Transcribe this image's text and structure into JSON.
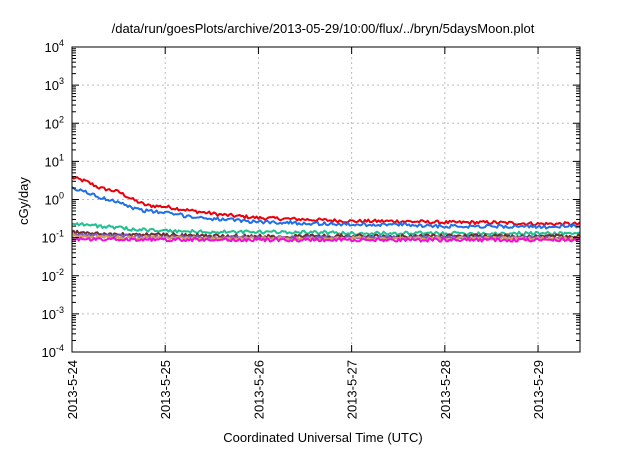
{
  "chart_data": {
    "type": "line",
    "title": "/data/run/goesPlots/archive/2013-05-29/10:00/flux/../bryn/5daysMoon.plot",
    "xlabel": "Coordinated Universal Time (UTC)",
    "ylabel": "cGy/day",
    "y_scale": "log",
    "ylim": [
      0.0001,
      10000
    ],
    "xlim": [
      0,
      5.45
    ],
    "x_unit": "days since 2013-5-24 00:00 UTC",
    "x_tick_labels": [
      "2013-5-24",
      "2013-5-25",
      "2013-5-26",
      "2013-5-27",
      "2013-5-28",
      "2013-5-29"
    ],
    "y_tick_labels": [
      {
        "base": "10",
        "exp": "-4"
      },
      {
        "base": "10",
        "exp": "-3"
      },
      {
        "base": "10",
        "exp": "-2"
      },
      {
        "base": "10",
        "exp": "-1"
      },
      {
        "base": "10",
        "exp": "0"
      },
      {
        "base": "10",
        "exp": "1"
      },
      {
        "base": "10",
        "exp": "2"
      },
      {
        "base": "10",
        "exp": "3"
      },
      {
        "base": "10",
        "exp": "4"
      }
    ],
    "grid": true,
    "legend": "none",
    "series": [
      {
        "color": "#e8000b",
        "x": [
          0,
          0.15,
          0.3,
          0.5,
          0.65,
          0.8,
          1.0,
          1.3,
          1.6,
          2.0,
          2.5,
          3.0,
          3.5,
          4.0,
          4.5,
          5.0,
          5.45
        ],
        "values": [
          3.8,
          3.0,
          2.0,
          1.6,
          1.0,
          0.7,
          0.65,
          0.5,
          0.4,
          0.33,
          0.3,
          0.27,
          0.27,
          0.25,
          0.25,
          0.23,
          0.23
        ]
      },
      {
        "color": "#1f6fe8",
        "x": [
          0,
          0.15,
          0.3,
          0.5,
          0.65,
          0.8,
          1.0,
          1.3,
          1.6,
          2.0,
          2.5,
          3.0,
          3.5,
          4.0,
          4.5,
          5.0,
          5.45
        ],
        "values": [
          1.9,
          1.6,
          1.1,
          0.9,
          0.6,
          0.5,
          0.45,
          0.35,
          0.3,
          0.26,
          0.24,
          0.22,
          0.22,
          0.2,
          0.2,
          0.19,
          0.2
        ]
      },
      {
        "color": "#20c090",
        "x": [
          0,
          0.3,
          0.6,
          1.0,
          1.5,
          2.0,
          2.5,
          3.0,
          3.5,
          4.0,
          4.5,
          5.0,
          5.45
        ],
        "values": [
          0.24,
          0.2,
          0.17,
          0.15,
          0.14,
          0.14,
          0.14,
          0.13,
          0.13,
          0.13,
          0.13,
          0.13,
          0.13
        ]
      },
      {
        "color": "#6a2c2c",
        "x": [
          0,
          0.5,
          1.0,
          1.5,
          2.0,
          2.5,
          3.0,
          3.5,
          4.0,
          4.5,
          5.0,
          5.45
        ],
        "values": [
          0.14,
          0.12,
          0.12,
          0.11,
          0.11,
          0.11,
          0.11,
          0.11,
          0.11,
          0.11,
          0.11,
          0.11
        ]
      },
      {
        "color": "#7a5cc0",
        "x": [
          0,
          0.5,
          1.0,
          1.5,
          2.0,
          2.5,
          3.0,
          3.5,
          4.0,
          4.5,
          5.0,
          5.45
        ],
        "values": [
          0.12,
          0.11,
          0.105,
          0.1,
          0.1,
          0.1,
          0.1,
          0.1,
          0.1,
          0.1,
          0.1,
          0.1
        ]
      },
      {
        "color": "#d4a060",
        "x": [
          0,
          0.5,
          1.0,
          1.5,
          2.0,
          2.5,
          3.0,
          3.5,
          4.0,
          4.5,
          5.0,
          5.45
        ],
        "values": [
          0.11,
          0.1,
          0.1,
          0.095,
          0.095,
          0.095,
          0.095,
          0.095,
          0.095,
          0.095,
          0.095,
          0.095
        ]
      },
      {
        "color": "#ee10d8",
        "x": [
          0,
          0.5,
          1.0,
          1.5,
          2.0,
          2.5,
          3.0,
          3.5,
          4.0,
          4.5,
          5.0,
          5.45
        ],
        "values": [
          0.09,
          0.09,
          0.088,
          0.088,
          0.087,
          0.087,
          0.087,
          0.087,
          0.087,
          0.087,
          0.085,
          0.088
        ]
      }
    ]
  }
}
